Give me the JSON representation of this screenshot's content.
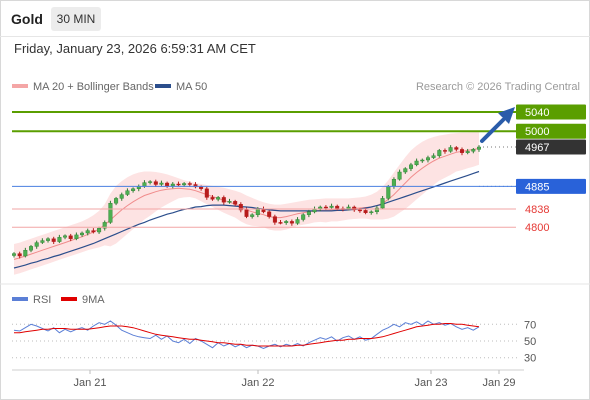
{
  "header": {
    "title": "Gold",
    "timeframe": "30 MIN"
  },
  "datetime": "Friday, January 23, 2026 6:59:31 AM CET",
  "legend": {
    "bb_label": "MA 20 + Bollinger Bands",
    "ma50_label": "MA 50",
    "credit": "Research © 2026 Trading Central"
  },
  "rsi_legend": {
    "rsi_label": "RSI",
    "ma_label": "9MA"
  },
  "colors": {
    "green": "#5a9e00",
    "blue": "#2962d9",
    "red": "#e53935",
    "bull": "#2e7d32",
    "bear": "#b71c1c",
    "last": "#333333"
  },
  "chart_data": [
    {
      "type": "candlestick",
      "title": "Gold",
      "ylim": [
        4690,
        5065
      ],
      "x_ticks": [
        "Jan 21",
        "Jan 22",
        "Jan 23",
        "Jan 29"
      ],
      "levels": [
        {
          "value": 5040,
          "label": "5040",
          "kind": "resistance"
        },
        {
          "value": 5000,
          "label": "5000",
          "kind": "resistance"
        },
        {
          "value": 4967,
          "label": "4967",
          "kind": "last_price"
        },
        {
          "value": 4885,
          "label": "4885",
          "kind": "pivot"
        },
        {
          "value": 4838,
          "label": "4838",
          "kind": "support"
        },
        {
          "value": 4800,
          "label": "4800",
          "kind": "support"
        }
      ],
      "close": [
        4745,
        4740,
        4752,
        4760,
        4768,
        4772,
        4776,
        4770,
        4779,
        4782,
        4776,
        4784,
        4788,
        4793,
        4790,
        4798,
        4810,
        4850,
        4860,
        4868,
        4876,
        4880,
        4885,
        4893,
        4895,
        4889,
        4892,
        4886,
        4890,
        4888,
        4891,
        4889,
        4884,
        4880,
        4862,
        4858,
        4862,
        4852,
        4854,
        4848,
        4836,
        4822,
        4826,
        4838,
        4832,
        4822,
        4810,
        4809,
        4812,
        4808,
        4816,
        4826,
        4832,
        4838,
        4842,
        4841,
        4844,
        4839,
        4838,
        4842,
        4836,
        4835,
        4830,
        4832,
        4840,
        4860,
        4885,
        4900,
        4915,
        4922,
        4930,
        4938,
        4940,
        4945,
        4949,
        4960,
        4958,
        4966,
        4962,
        4955,
        4958,
        4962,
        4967
      ],
      "ma20": [
        4733,
        4736,
        4740,
        4744,
        4748,
        4752,
        4756,
        4760,
        4764,
        4768,
        4772,
        4776,
        4780,
        4785,
        4790,
        4796,
        4805,
        4815,
        4826,
        4836,
        4845,
        4853,
        4860,
        4866,
        4870,
        4874,
        4877,
        4879,
        4880,
        4881,
        4880,
        4879,
        4876,
        4872,
        4868,
        4864,
        4860,
        4856,
        4852,
        4848,
        4842,
        4836,
        4832,
        4829,
        4826,
        4822,
        4820,
        4820,
        4822,
        4825,
        4828,
        4830,
        4832,
        4834,
        4835,
        4835,
        4836,
        4836,
        4837,
        4838,
        4839,
        4840,
        4841,
        4842,
        4845,
        4850,
        4858,
        4868,
        4880,
        4892,
        4904,
        4914,
        4923,
        4931,
        4938,
        4944,
        4948,
        4952,
        4956,
        4958,
        4960,
        4962,
        4964
      ],
      "ma50": [
        4715,
        4718,
        4721,
        4725,
        4728,
        4732,
        4735,
        4739,
        4742,
        4746,
        4750,
        4754,
        4758,
        4762,
        4766,
        4771,
        4776,
        4781,
        4786,
        4791,
        4796,
        4801,
        4806,
        4810,
        4815,
        4819,
        4823,
        4827,
        4830,
        4834,
        4837,
        4839,
        4842,
        4843,
        4845,
        4846,
        4846,
        4846,
        4845,
        4844,
        4843,
        4842,
        4841,
        4839,
        4838,
        4836,
        4835,
        4834,
        4834,
        4834,
        4834,
        4834,
        4834,
        4834,
        4834,
        4834,
        4834,
        4835,
        4835,
        4836,
        4837,
        4838,
        4840,
        4842,
        4845,
        4848,
        4852,
        4856,
        4860,
        4864,
        4868,
        4872,
        4876,
        4880,
        4884,
        4888,
        4892,
        4896,
        4900,
        4904,
        4908,
        4912,
        4916
      ],
      "bb_upper": [
        4765,
        4768,
        4772,
        4776,
        4780,
        4784,
        4788,
        4792,
        4796,
        4800,
        4804,
        4808,
        4812,
        4818,
        4825,
        4834,
        4848,
        4870,
        4886,
        4896,
        4904,
        4910,
        4914,
        4916,
        4916,
        4915,
        4913,
        4910,
        4906,
        4902,
        4898,
        4895,
        4892,
        4890,
        4888,
        4886,
        4884,
        4882,
        4879,
        4876,
        4872,
        4866,
        4861,
        4856,
        4852,
        4849,
        4847,
        4847,
        4849,
        4851,
        4853,
        4855,
        4857,
        4858,
        4859,
        4860,
        4860,
        4860,
        4860,
        4860,
        4861,
        4862,
        4864,
        4868,
        4874,
        4884,
        4898,
        4914,
        4930,
        4946,
        4960,
        4970,
        4978,
        4984,
        4988,
        4991,
        4993,
        4995,
        4996,
        4997,
        4997,
        4998,
        4998
      ],
      "bb_lower": [
        4701,
        4704,
        4708,
        4712,
        4716,
        4720,
        4724,
        4728,
        4732,
        4736,
        4740,
        4744,
        4748,
        4752,
        4755,
        4758,
        4762,
        4760,
        4766,
        4776,
        4786,
        4796,
        4806,
        4816,
        4824,
        4833,
        4841,
        4848,
        4854,
        4860,
        4862,
        4863,
        4860,
        4854,
        4848,
        4842,
        4836,
        4830,
        4825,
        4820,
        4812,
        4806,
        4803,
        4802,
        4800,
        4795,
        4793,
        4793,
        4795,
        4799,
        4803,
        4805,
        4807,
        4810,
        4811,
        4810,
        4812,
        4812,
        4814,
        4816,
        4817,
        4818,
        4818,
        4816,
        4816,
        4816,
        4818,
        4822,
        4830,
        4838,
        4848,
        4858,
        4868,
        4878,
        4888,
        4897,
        4903,
        4909,
        4916,
        4919,
        4923,
        4926,
        4930
      ]
    },
    {
      "type": "line",
      "title": "RSI",
      "ylim": [
        20,
        80
      ],
      "y_ticks": [
        "70",
        "50",
        "30"
      ],
      "series": [
        {
          "name": "RSI",
          "values": [
            63,
            62,
            66,
            70,
            68,
            65,
            62,
            66,
            60,
            64,
            61,
            64,
            66,
            63,
            68,
            72,
            70,
            74,
            69,
            63,
            60,
            57,
            55,
            54,
            53,
            57,
            52,
            56,
            50,
            48,
            52,
            47,
            53,
            50,
            46,
            42,
            48,
            44,
            47,
            43,
            46,
            42,
            45,
            44,
            41,
            44,
            46,
            43,
            46,
            44,
            47,
            44,
            48,
            51,
            54,
            52,
            55,
            50,
            54,
            56,
            52,
            55,
            51,
            53,
            58,
            63,
            66,
            70,
            67,
            72,
            70,
            73,
            69,
            74,
            70,
            72,
            69,
            71,
            67,
            64,
            66,
            63,
            67
          ]
        },
        {
          "name": "9MA",
          "values": [
            60,
            60,
            61,
            62,
            63,
            64,
            64,
            65,
            65,
            65,
            64,
            64,
            64,
            64,
            65,
            66,
            67,
            68,
            68,
            68,
            67,
            66,
            64,
            62,
            60,
            58,
            57,
            56,
            55,
            54,
            53,
            52,
            52,
            51,
            50,
            49,
            48,
            48,
            47,
            46,
            46,
            45,
            45,
            44,
            44,
            44,
            44,
            44,
            44,
            44,
            45,
            45,
            46,
            47,
            48,
            49,
            50,
            51,
            51,
            52,
            52,
            53,
            53,
            53,
            54,
            55,
            57,
            59,
            61,
            63,
            65,
            67,
            68,
            69,
            70,
            70,
            71,
            71,
            70,
            70,
            69,
            68,
            67
          ]
        }
      ]
    }
  ]
}
